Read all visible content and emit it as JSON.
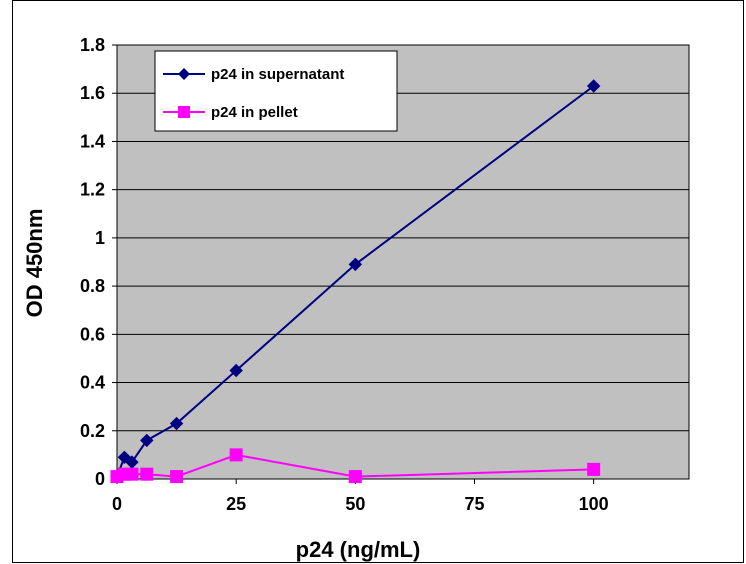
{
  "chart_data": {
    "type": "line",
    "title": "",
    "xlabel": "p24 (ng/mL)",
    "ylabel": "OD 450nm",
    "xlim": [
      0,
      120
    ],
    "ylim": [
      0,
      1.8
    ],
    "xticks": [
      0,
      25,
      50,
      75,
      100
    ],
    "xtick_labels": [
      "0",
      "25",
      "50",
      "75",
      "100"
    ],
    "yticks": [
      0,
      0.2,
      0.4,
      0.6,
      0.8,
      1.0,
      1.2,
      1.4,
      1.6,
      1.8
    ],
    "ytick_labels": [
      "0",
      "0.2",
      "0.4",
      "0.6",
      "0.8",
      "1",
      "1.2",
      "1.4",
      "1.6",
      "1.8"
    ],
    "grid": "horizontal",
    "legend_position": "top-left",
    "plot_background": "#c0c0c0",
    "series": [
      {
        "name": "p24 in supernatant",
        "color": "#000080",
        "marker": "diamond",
        "x": [
          0,
          1.56,
          3.13,
          6.25,
          12.5,
          25,
          50,
          100
        ],
        "y": [
          0.01,
          0.09,
          0.07,
          0.16,
          0.23,
          0.45,
          0.89,
          1.63
        ]
      },
      {
        "name": "p24 in pellet",
        "color": "#ff00ff",
        "marker": "square",
        "x": [
          0,
          1.56,
          3.13,
          6.25,
          12.5,
          25,
          50,
          100
        ],
        "y": [
          0.01,
          0.02,
          0.02,
          0.02,
          0.01,
          0.1,
          0.01,
          0.04
        ]
      }
    ]
  }
}
